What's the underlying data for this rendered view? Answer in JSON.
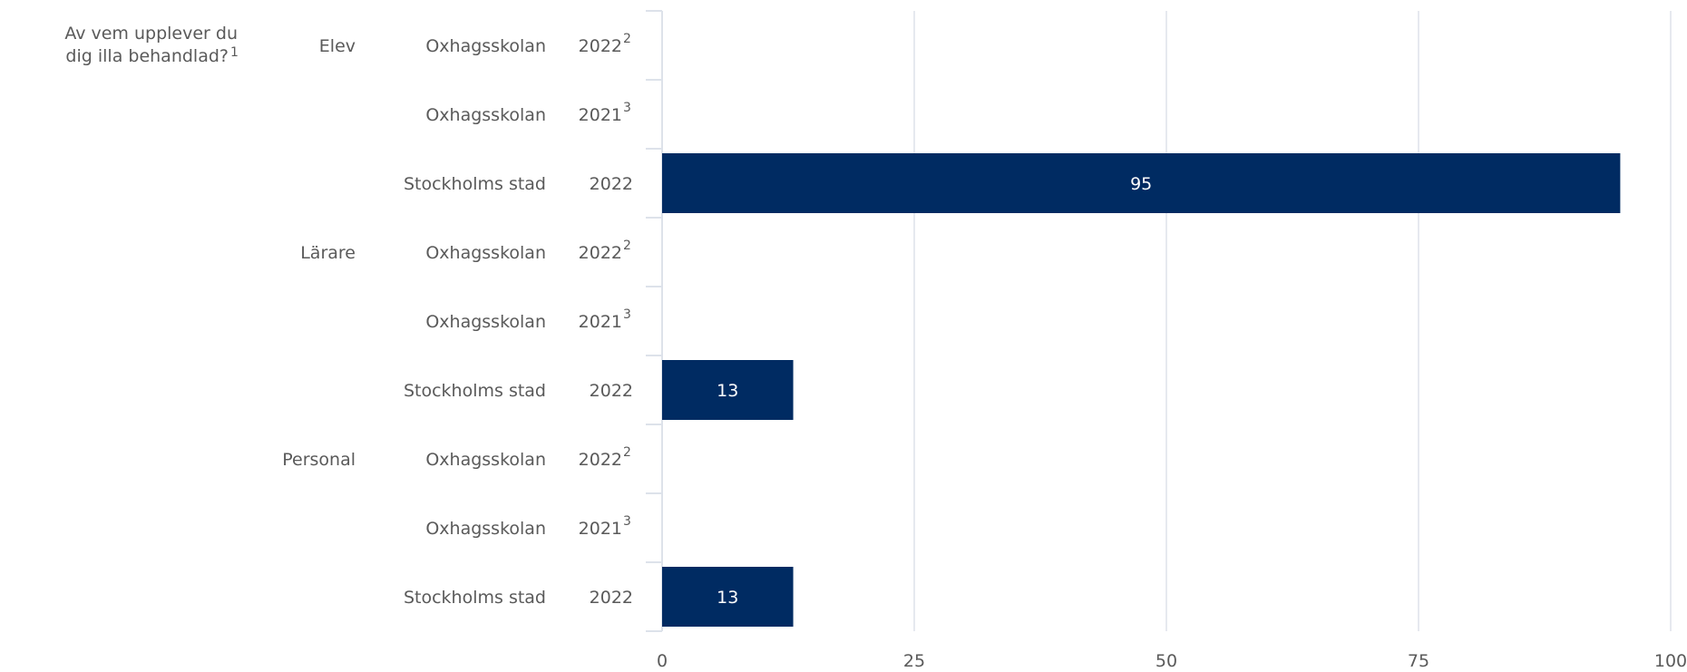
{
  "chart_data": {
    "type": "bar",
    "orientation": "horizontal",
    "question": "Av vem upplever du dig illa behandlad?",
    "question_sup": "1",
    "groups": [
      {
        "label": "Elev",
        "rows": [
          {
            "unit": "Oxhagsskolan",
            "year": "2022",
            "sup": "2",
            "value": null
          },
          {
            "unit": "Oxhagsskolan",
            "year": "2021",
            "sup": "3",
            "value": null
          },
          {
            "unit": "Stockholms stad",
            "year": "2022",
            "sup": "",
            "value": 95
          }
        ]
      },
      {
        "label": "Lärare",
        "rows": [
          {
            "unit": "Oxhagsskolan",
            "year": "2022",
            "sup": "2",
            "value": null
          },
          {
            "unit": "Oxhagsskolan",
            "year": "2021",
            "sup": "3",
            "value": null
          },
          {
            "unit": "Stockholms stad",
            "year": "2022",
            "sup": "",
            "value": 13
          }
        ]
      },
      {
        "label": "Personal",
        "rows": [
          {
            "unit": "Oxhagsskolan",
            "year": "2022",
            "sup": "2",
            "value": null
          },
          {
            "unit": "Oxhagsskolan",
            "year": "2021",
            "sup": "3",
            "value": null
          },
          {
            "unit": "Stockholms stad",
            "year": "2022",
            "sup": "",
            "value": 13
          }
        ]
      }
    ],
    "xlim": [
      0,
      100
    ],
    "xticks": [
      0,
      25,
      50,
      75,
      100
    ],
    "grid": true,
    "bar_color": "#002b62",
    "grid_color": "#dde2ea",
    "text_color": "#5a5a5a"
  }
}
